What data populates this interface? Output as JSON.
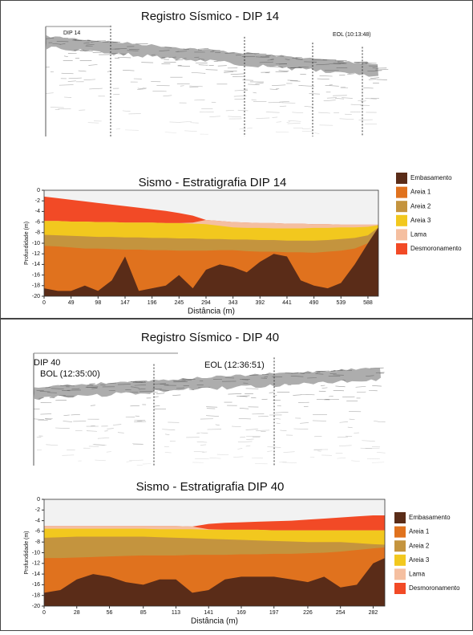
{
  "seismic": [
    {
      "title": "Registro Sísmico - DIP 14",
      "labels": [
        "DIP 14",
        "EOL (10:13:48)"
      ]
    },
    {
      "title": "Registro Sísmico - DIP 40",
      "labels": [
        "DIP 40",
        "BOL (12:35:00)",
        "EOL (12:36:51)"
      ]
    }
  ],
  "chart_data": [
    {
      "type": "area",
      "title": "Sismo - Estratigrafia DIP 14",
      "x_label": "Distância (m)",
      "y_label": "Profundidade (m)",
      "legend": "right",
      "x": [
        0,
        25,
        49,
        74,
        98,
        123,
        147,
        172,
        196,
        221,
        245,
        270,
        294,
        319,
        343,
        368,
        392,
        417,
        441,
        466,
        490,
        515,
        539,
        564,
        588,
        607
      ],
      "xlim": [
        0,
        607
      ],
      "xticks": [
        0,
        49,
        98,
        147,
        196,
        245,
        294,
        343,
        392,
        441,
        490,
        539,
        588
      ],
      "ylim": [
        -20,
        0
      ],
      "yticks": [
        0,
        -2,
        -4,
        -6,
        -8,
        -10,
        -12,
        -14,
        -16,
        -18,
        -20
      ],
      "series": [
        {
          "name": "Embasamento",
          "color": "#5a2c18",
          "values": [
            -18.5,
            -19,
            -19,
            -18,
            -19,
            -17,
            -12.5,
            -19,
            -18.5,
            -18,
            -16,
            -18.5,
            -15,
            -14,
            -14.5,
            -15.5,
            -13.5,
            -12,
            -12.5,
            -17,
            -18,
            -18.5,
            -17.5,
            -14,
            -10,
            -7
          ]
        },
        {
          "name": "Areia 1",
          "color": "#e0721e",
          "values": [
            -10.5,
            -10.6,
            -10.8,
            -11,
            -11,
            -11.1,
            -11.2,
            -11.2,
            -11.3,
            -11.3,
            -11.4,
            -11.4,
            -11.4,
            -11.3,
            -11.3,
            -11.5,
            -11.6,
            -11.6,
            -11.7,
            -11.7,
            -11.8,
            -11.6,
            -11.4,
            -11,
            -10,
            -7
          ]
        },
        {
          "name": "Areia 2",
          "color": "#c4943e",
          "values": [
            -8.4,
            -8.5,
            -8.6,
            -8.7,
            -8.8,
            -8.8,
            -8.9,
            -8.9,
            -9,
            -9,
            -9.1,
            -9.1,
            -9.2,
            -9.2,
            -9.3,
            -9.3,
            -9.4,
            -9.4,
            -9.5,
            -9.5,
            -9.5,
            -9.4,
            -9.2,
            -9,
            -8.5,
            -7
          ]
        },
        {
          "name": "Areia 3",
          "color": "#f2c81e",
          "values": [
            -5.8,
            -5.8,
            -5.9,
            -5.9,
            -6,
            -6,
            -6.1,
            -6.1,
            -6.1,
            -6.2,
            -6.2,
            -6.3,
            -6.4,
            -6.7,
            -7,
            -7.1,
            -7.1,
            -7.2,
            -7.2,
            -7.2,
            -7.1,
            -7.1,
            -7,
            -7,
            -6.9,
            -6.6
          ]
        },
        {
          "name": "Lama",
          "color": "#f5bfa0",
          "values": [
            -5.8,
            -5.8,
            -5.9,
            -5.9,
            -6,
            -6,
            -6.1,
            -6.1,
            -6.1,
            -6.2,
            -6.2,
            -6.1,
            -5.6,
            -5.8,
            -6,
            -6.1,
            -6.2,
            -6.2,
            -6.3,
            -6.3,
            -6.4,
            -6.4,
            -6.5,
            -6.5,
            -6.5,
            -6.5
          ]
        },
        {
          "name": "Desmoronamento",
          "color": "#f24a26",
          "values": [
            -1.2,
            -1.5,
            -1.8,
            -2.1,
            -2.4,
            -2.7,
            -3,
            -3.3,
            -3.6,
            -3.9,
            -4.3,
            -4.8,
            -5.6,
            -5.8,
            -6,
            -6.1,
            -6.2,
            -6.2,
            -6.3,
            -6.3,
            -6.4,
            -6.4,
            -6.5,
            -6.5,
            -6.5,
            -6.5
          ]
        }
      ]
    },
    {
      "type": "area",
      "title": "Sismo - Estratigrafia DIP 40",
      "x_label": "Distância (m)",
      "y_label": "Profundidade (m)",
      "legend": "right",
      "x": [
        0,
        14,
        28,
        42,
        56,
        70,
        85,
        99,
        113,
        127,
        141,
        155,
        169,
        183,
        197,
        212,
        226,
        240,
        254,
        268,
        282,
        292
      ],
      "xlim": [
        0,
        292
      ],
      "xticks": [
        0,
        28,
        56,
        85,
        113,
        141,
        169,
        197,
        226,
        254,
        282
      ],
      "ylim": [
        -20,
        0
      ],
      "yticks": [
        0,
        -2,
        -4,
        -6,
        -8,
        -10,
        -12,
        -14,
        -16,
        -18,
        -20
      ],
      "series": [
        {
          "name": "Embasamento",
          "color": "#5a2c18",
          "values": [
            -17.5,
            -17,
            -15,
            -14,
            -14.5,
            -15.5,
            -16,
            -15,
            -15,
            -17.5,
            -17,
            -15,
            -14.5,
            -14.5,
            -14.5,
            -15,
            -15.5,
            -14.5,
            -16.5,
            -16,
            -12,
            -11
          ]
        },
        {
          "name": "Areia 1",
          "color": "#e0721e",
          "values": [
            -11,
            -11,
            -10.9,
            -10.8,
            -10.7,
            -10.6,
            -10.5,
            -10.5,
            -10.5,
            -10.4,
            -10.4,
            -10.4,
            -10.3,
            -10.3,
            -10.2,
            -10.2,
            -10.1,
            -10,
            -9.8,
            -9.5,
            -9.2,
            -9
          ]
        },
        {
          "name": "Areia 2",
          "color": "#c4943e",
          "values": [
            -7.2,
            -7.1,
            -7,
            -7,
            -7,
            -7,
            -7,
            -7.1,
            -7.2,
            -7.3,
            -7.4,
            -7.5,
            -7.6,
            -7.7,
            -7.8,
            -7.9,
            -8,
            -8,
            -8,
            -8.2,
            -8.4,
            -8.5
          ]
        },
        {
          "name": "Areia 3",
          "color": "#f2c81e",
          "values": [
            -5.5,
            -5.5,
            -5.5,
            -5.5,
            -5.5,
            -5.5,
            -5.5,
            -5.6,
            -5.6,
            -5.6,
            -5.7,
            -5.7,
            -5.7,
            -5.7,
            -5.8,
            -5.8,
            -5.8,
            -5.8,
            -5.8,
            -5.8,
            -5.8,
            -5.8
          ]
        },
        {
          "name": "Lama",
          "color": "#f5bfa0",
          "values": [
            -5,
            -5,
            -5,
            -5,
            -5,
            -5,
            -5,
            -5,
            -5,
            -5.1,
            -5.6,
            -5.7,
            -5.7,
            -5.7,
            -5.8,
            -5.8,
            -5.8,
            -5.8,
            -5.8,
            -5.8,
            -5.8,
            -5.8
          ]
        },
        {
          "name": "Desmoronamento",
          "color": "#f24a26",
          "values": [
            -5,
            -5,
            -5,
            -5,
            -5,
            -5,
            -5,
            -5,
            -5,
            -5.1,
            -4.6,
            -4.4,
            -4.3,
            -4.2,
            -4.1,
            -4,
            -3.8,
            -3.6,
            -3.4,
            -3.2,
            -3,
            -3
          ]
        }
      ]
    }
  ]
}
